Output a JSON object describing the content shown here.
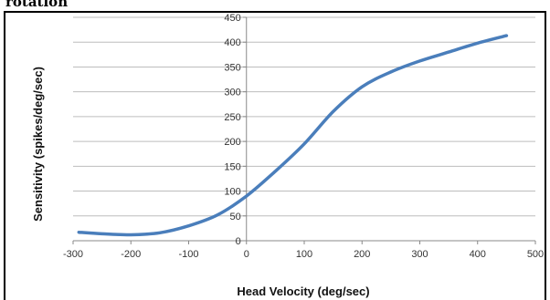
{
  "header": {
    "text": "rotation"
  },
  "chart_data": {
    "type": "line",
    "xlabel": "Head Velocity (deg/sec)",
    "ylabel": "Sensitivity (spikes/deg/sec)",
    "xlim": [
      -300,
      500
    ],
    "ylim": [
      0,
      450
    ],
    "x_ticks": [
      -300,
      -200,
      -100,
      0,
      100,
      200,
      300,
      400,
      500
    ],
    "y_ticks": [
      0,
      50,
      100,
      150,
      200,
      250,
      300,
      350,
      400,
      450
    ],
    "grid": "horizontal",
    "legend": "none",
    "line_color": "#4a7ebb",
    "series": [
      {
        "x": [
          -290,
          -250,
          -200,
          -150,
          -100,
          -50,
          0,
          50,
          100,
          150,
          200,
          250,
          300,
          350,
          400,
          450
        ],
        "y": [
          17,
          14,
          12,
          16,
          30,
          52,
          90,
          140,
          195,
          260,
          310,
          340,
          362,
          380,
          398,
          413
        ]
      }
    ]
  }
}
